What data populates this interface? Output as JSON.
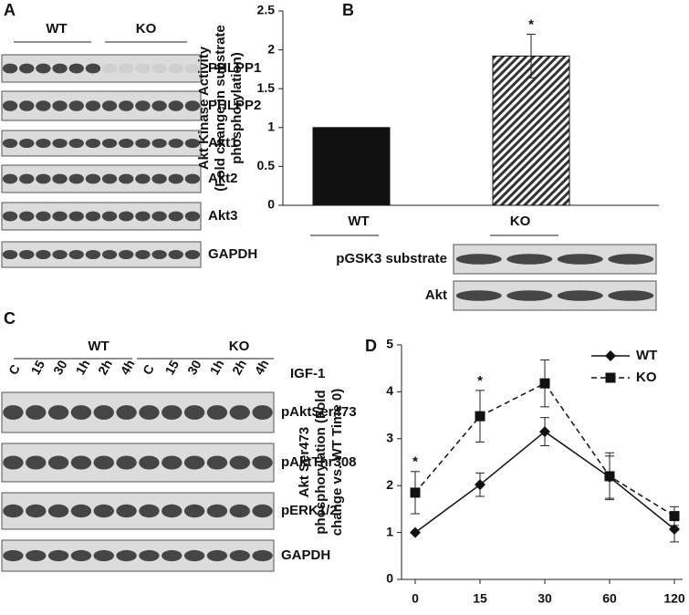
{
  "panels": {
    "A": {
      "letter": "A",
      "groups": [
        "WT",
        "KO"
      ],
      "rows": [
        "PHLPP1",
        "PHLPP2",
        "Akt1",
        "Akt2",
        "Akt3",
        "GAPDH"
      ]
    },
    "B_blot": {
      "rows": [
        "pGSK3 substrate",
        "Akt"
      ]
    },
    "C": {
      "letter": "C",
      "groups": [
        "WT",
        "KO"
      ],
      "treatment": "IGF-1",
      "lanes": [
        "C",
        "15",
        "30",
        "1h",
        "2h",
        "4h",
        "C",
        "15",
        "30",
        "1h",
        "2h",
        "4h"
      ],
      "rows": [
        "pAktSer473",
        "pAktThr308",
        "pERK1/2",
        "GAPDH"
      ]
    }
  },
  "chart_data": [
    {
      "type": "bar",
      "letter": "B",
      "ylabel": [
        "Akt Kinase Activity",
        "(Fold change in substrate",
        "phosphorylation)"
      ],
      "categories": [
        "WT",
        "KO"
      ],
      "values": [
        1,
        1.92
      ],
      "errors": [
        null,
        0.28
      ],
      "colors": [
        "#111111",
        "hatch"
      ],
      "ylim": [
        0,
        2.5
      ],
      "yticks": [
        0,
        0.5,
        1,
        1.5,
        2,
        2.5
      ],
      "annotations": [
        {
          "text": "*",
          "category": 1
        }
      ]
    },
    {
      "type": "line",
      "letter": "D",
      "ylabel": [
        "Akt Ser473",
        "phosphorylation (Fold",
        "change vs. WT Time 0)"
      ],
      "categories": [
        "0",
        "15",
        "30",
        "60",
        "120"
      ],
      "series": [
        {
          "name": "WT",
          "color": "#111111",
          "dash": false,
          "marker": "diamond",
          "values": [
            1,
            2.02,
            3.15,
            2.18,
            1.07
          ],
          "errors": [
            0,
            0.25,
            0.3,
            0.45,
            0.27
          ]
        },
        {
          "name": "KO",
          "color": "#111111",
          "dash": true,
          "marker": "square",
          "values": [
            1.85,
            3.48,
            4.18,
            2.2,
            1.35
          ],
          "errors": [
            0.45,
            0.55,
            0.5,
            0.5,
            0.2
          ]
        }
      ],
      "ylim": [
        0,
        5
      ],
      "yticks": [
        0,
        1,
        2,
        3,
        4,
        5
      ],
      "legend": "upper right",
      "annotations": [
        {
          "text": "*",
          "category": 0
        },
        {
          "text": "*",
          "category": 1
        }
      ]
    }
  ]
}
